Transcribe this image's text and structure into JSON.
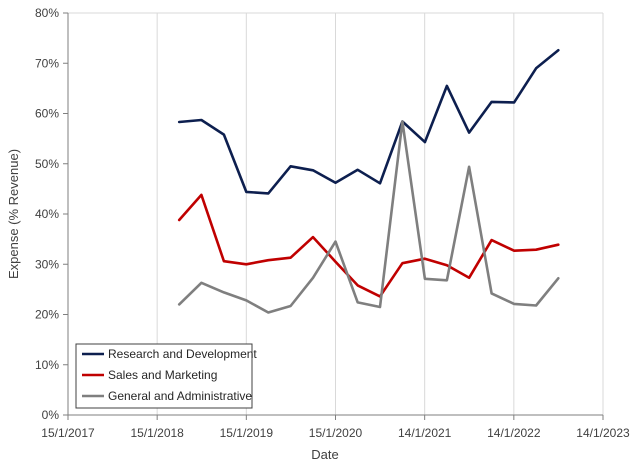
{
  "chart_data": {
    "type": "line",
    "title": "",
    "xlabel": "Date",
    "ylabel": "Expense (% Revenue)",
    "x_ticks": [
      "15/1/2017",
      "15/1/2018",
      "15/1/2019",
      "15/1/2020",
      "14/1/2021",
      "14/1/2022",
      "14/1/2023"
    ],
    "y_ticks": [
      "0%",
      "10%",
      "20%",
      "30%",
      "40%",
      "50%",
      "60%",
      "70%",
      "80%"
    ],
    "xlim": [
      "2017-01-15",
      "2023-01-14"
    ],
    "ylim": [
      0,
      80
    ],
    "grid": "vertical",
    "legend_position": "bottom-left",
    "x": [
      "2018-04-15",
      "2018-07-15",
      "2018-10-15",
      "2019-01-15",
      "2019-04-15",
      "2019-07-15",
      "2019-10-15",
      "2020-01-15",
      "2020-04-15",
      "2020-07-15",
      "2020-10-15",
      "2021-01-15",
      "2021-04-15",
      "2021-07-15",
      "2021-10-15",
      "2022-01-15",
      "2022-04-15",
      "2022-07-15"
    ],
    "series": [
      {
        "name": "Research and Development",
        "color": "#0d1f4f",
        "values": [
          58.3,
          58.7,
          55.8,
          44.4,
          44.1,
          49.5,
          48.7,
          46.2,
          48.8,
          46.1,
          58.4,
          54.3,
          65.5,
          56.2,
          62.3,
          62.2,
          69.0,
          72.6
        ]
      },
      {
        "name": "Sales and Marketing",
        "color": "#c00000",
        "values": [
          38.8,
          43.8,
          30.6,
          30.0,
          30.8,
          31.3,
          35.4,
          30.5,
          25.8,
          23.6,
          30.2,
          31.1,
          29.8,
          27.3,
          34.8,
          32.7,
          32.9,
          33.9
        ]
      },
      {
        "name": "General and Administrative",
        "color": "#7f7f7f",
        "values": [
          22.0,
          26.3,
          24.4,
          22.8,
          20.4,
          21.7,
          27.3,
          34.5,
          22.4,
          21.5,
          58.4,
          27.1,
          26.8,
          49.4,
          24.2,
          22.1,
          21.8,
          27.2
        ]
      }
    ]
  }
}
